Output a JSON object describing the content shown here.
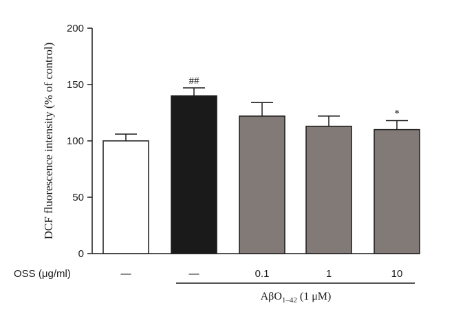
{
  "chart_data": {
    "type": "bar",
    "title": "",
    "ylabel": "DCF fluorescence intensity (% of control)",
    "xlabel": "",
    "ylim": [
      0,
      200
    ],
    "yticks": [
      0,
      50,
      100,
      150,
      200
    ],
    "categories": [
      "—",
      "—",
      "0.1",
      "1",
      "10"
    ],
    "values": [
      100,
      140,
      122,
      113,
      110
    ],
    "errors": [
      6,
      7,
      12,
      9,
      8
    ],
    "bar_colors": [
      "#ffffff",
      "#1a1a1a",
      "#827a76",
      "#827a76",
      "#827a76"
    ],
    "annotations": [
      "",
      "##",
      "",
      "",
      "*"
    ],
    "row_label": "OSS (μg/ml)",
    "group_label": "AβO1–42 (1 μM)",
    "group_label_parts": {
      "prefix": "Aβ",
      "o": "O",
      "sub": "1–42",
      "suffix": " (1 μM)"
    },
    "group_span": [
      1,
      4
    ],
    "grid": false,
    "legend": "none"
  }
}
